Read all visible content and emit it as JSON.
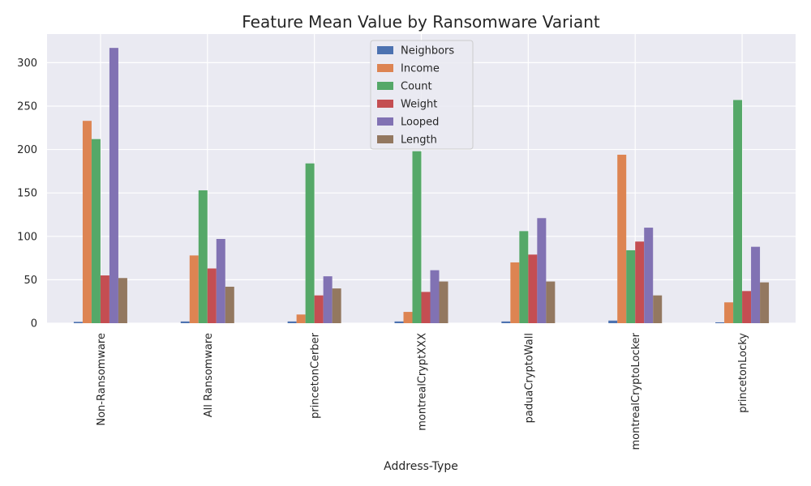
{
  "chart_data": {
    "type": "bar",
    "title": "Feature Mean Value by Ransomware Variant",
    "xlabel": "Address-Type",
    "ylabel": "",
    "ylim": [
      0,
      333
    ],
    "yticks": [
      0,
      50,
      100,
      150,
      200,
      250,
      300
    ],
    "grid": true,
    "legend_position": "top-center",
    "categories": [
      "Non-Ransomware",
      "All Ransomware",
      "princetonCerber",
      "montrealCryptXXX",
      "paduaCryptoWall",
      "montrealCryptoLocker",
      "princetonLocky"
    ],
    "series": [
      {
        "name": "Neighbors",
        "color": "#4c72b0",
        "values": [
          1.5,
          2.0,
          2.0,
          2.0,
          2.0,
          3.0,
          1.0
        ]
      },
      {
        "name": "Income",
        "color": "#dd8452",
        "values": [
          233,
          78,
          10,
          13,
          70,
          194,
          24
        ]
      },
      {
        "name": "Count",
        "color": "#55a868",
        "values": [
          212,
          153,
          184,
          198,
          106,
          84,
          257
        ]
      },
      {
        "name": "Weight",
        "color": "#c44e52",
        "values": [
          55,
          63,
          32,
          36,
          79,
          94,
          37
        ]
      },
      {
        "name": "Looped",
        "color": "#8172b3",
        "values": [
          317,
          97,
          54,
          61,
          121,
          110,
          88
        ]
      },
      {
        "name": "Length",
        "color": "#937860",
        "values": [
          52,
          42,
          40,
          48,
          48,
          32,
          47
        ]
      }
    ]
  }
}
